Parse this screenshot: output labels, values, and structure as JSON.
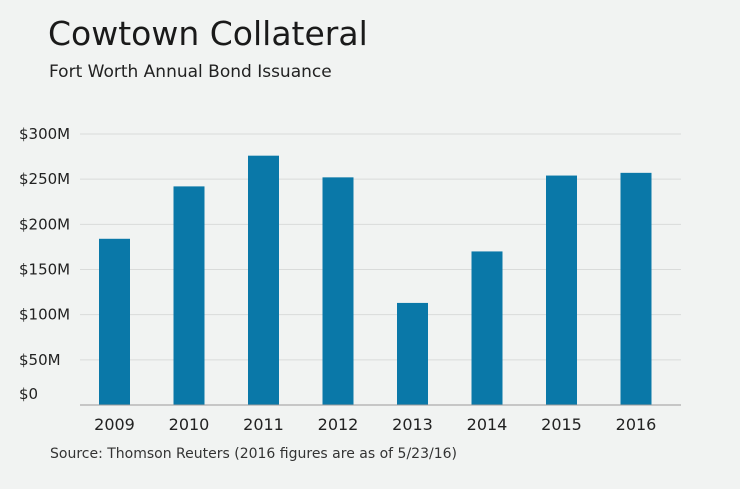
{
  "chart_data": {
    "type": "bar",
    "title": "Cowtown Collateral",
    "subtitle": "Fort Worth Annual Bond Issuance",
    "categories": [
      "2009",
      "2010",
      "2011",
      "2012",
      "2013",
      "2014",
      "2015",
      "2016"
    ],
    "values": [
      184,
      242,
      276,
      252,
      113,
      170,
      254,
      257
    ],
    "unit": "millions of dollars",
    "xlabel": "",
    "ylabel": "",
    "ylim": [
      0,
      300
    ],
    "yticks": [
      0,
      50,
      100,
      150,
      200,
      250,
      300
    ],
    "ytick_labels": [
      "$0",
      "$50M",
      "$100M",
      "$150M",
      "$200M",
      "$250M",
      "$300M"
    ],
    "grid": true,
    "legend": "none",
    "source": "Source: Thomson Reuters (2016 figures are as of 5/23/16)",
    "colors": {
      "bar": "#0a78a8",
      "grid": "#d9dbda",
      "axis": "#9a9a9a",
      "background": "#f1f3f2",
      "text": "#222222"
    }
  }
}
